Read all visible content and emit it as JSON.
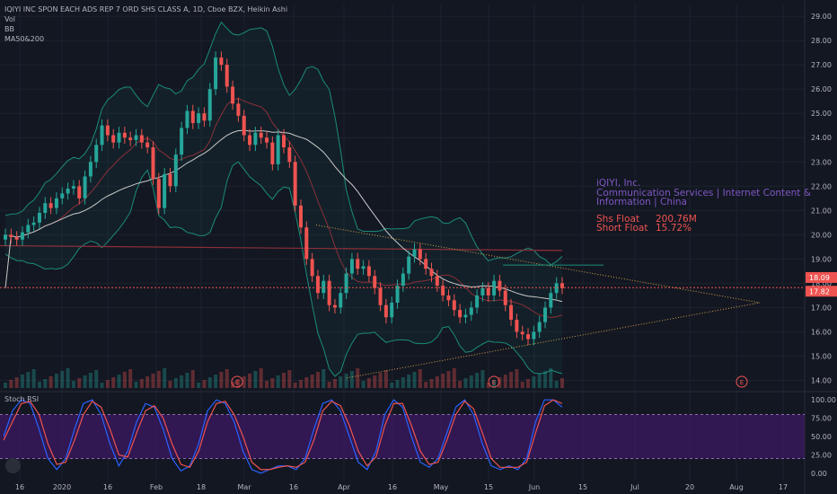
{
  "legend": {
    "title": "IQIYI INC SPON EACH ADS REP 7 ORD SHS CLASS A, 1D, Cboe BZX, Heikin Ashi",
    "indicators": [
      "Vol",
      "BB",
      "MA50&200"
    ]
  },
  "info": {
    "company": "iQIYI, Inc.",
    "sector_line1": "Communication Services | Internet Content &",
    "sector_line2": "Information | China",
    "shs_float_label": "Shs Float",
    "shs_float_value": "200.76M",
    "short_float_label": "Short Float",
    "short_float_value": "15.72%"
  },
  "rsi_label": "Stoch RSI",
  "colors": {
    "background": "#131722",
    "up": "#26a69a",
    "down": "#ef5350",
    "axis_text": "#b2b5be",
    "grid": "#1e222d",
    "ma50": "#c9c9c9",
    "ma200": "#8c2f39",
    "bb_line": "#1b8c7a",
    "rsi_band": "#4a1a7a",
    "rsi_k": "#2962ff",
    "rsi_d": "#ef5350"
  },
  "chart_data": [
    {
      "type": "candlestick",
      "title": "IQIYI INC SPON EACH ADS REP 7 ORD SHS CLASS A, 1D, Cboe BZX, Heikin Ashi",
      "x_tick_labels": [
        "16",
        "2020",
        "16",
        "Feb",
        "18",
        "Mar",
        "16",
        "Apr",
        "16",
        "May",
        "15",
        "Jun",
        "15",
        "Jul",
        "20",
        "Aug",
        "17"
      ],
      "y_tick_labels": [
        "14.00",
        "15.00",
        "16.00",
        "17.00",
        "18.00",
        "19.00",
        "20.00",
        "21.00",
        "22.00",
        "23.00",
        "24.00",
        "25.00",
        "26.00",
        "27.00",
        "28.00",
        "29.00"
      ],
      "ylim": [
        13.5,
        29.3
      ],
      "price_labels": [
        "18.09",
        "17.82"
      ],
      "last_price": 17.82,
      "prev_price": 18.09,
      "earnings_markers": [
        "E",
        "E",
        "E"
      ],
      "close_series": [
        20.0,
        19.9,
        19.8,
        20.1,
        20.4,
        20.5,
        20.9,
        21.3,
        21.1,
        21.5,
        21.7,
        21.9,
        22.0,
        21.5,
        22.4,
        23.0,
        23.7,
        24.5,
        24.1,
        23.8,
        24.2,
        24.0,
        23.9,
        24.1,
        23.8,
        23.6,
        22.3,
        21.1,
        22.5,
        22.0,
        23.3,
        24.4,
        25.1,
        24.6,
        25.0,
        24.7,
        26.0,
        27.3,
        27.0,
        26.1,
        25.4,
        24.9,
        24.1,
        23.7,
        24.2,
        24.0,
        23.8,
        22.9,
        24.1,
        23.6,
        23.0,
        21.2,
        20.3,
        19.0,
        18.3,
        17.6,
        18.1,
        17.1,
        17.0,
        17.6,
        18.4,
        19.0,
        18.6,
        18.7,
        18.3,
        17.8,
        17.1,
        16.6,
        17.2,
        17.9,
        18.4,
        19.1,
        19.4,
        19.0,
        18.6,
        18.3,
        17.9,
        17.5,
        17.3,
        16.9,
        16.6,
        16.7,
        17.0,
        17.5,
        17.8,
        17.5,
        18.1,
        17.7,
        17.1,
        16.5,
        16.0,
        15.9,
        15.7,
        16.0,
        16.4,
        17.0,
        17.6,
        18.0,
        17.8
      ],
      "ma50_start": 17.8,
      "ma50_end": 17.9,
      "ma200_level": 19.4
    },
    {
      "type": "line",
      "title": "Stoch RSI",
      "y_tick_labels": [
        "0.00",
        "25.00",
        "50.00",
        "75.00",
        "100.00"
      ],
      "ylim": [
        -10,
        110
      ],
      "band": [
        20,
        80
      ],
      "series": [
        {
          "values": [
            50,
            85,
            100,
            95,
            60,
            20,
            5,
            20,
            60,
            95,
            100,
            80,
            40,
            10,
            30,
            70,
            95,
            90,
            60,
            20,
            3,
            10,
            40,
            85,
            100,
            95,
            70,
            30,
            5,
            0,
            5,
            10,
            10,
            5,
            20,
            60,
            95,
            100,
            85,
            50,
            15,
            5,
            30,
            80,
            100,
            90,
            50,
            15,
            8,
            20,
            55,
            90,
            100,
            80,
            40,
            10,
            5,
            10,
            5,
            20,
            70,
            100,
            100,
            90
          ]
        },
        {
          "values": [
            45,
            70,
            95,
            98,
            80,
            40,
            12,
            15,
            45,
            80,
            98,
            90,
            60,
            25,
            22,
            55,
            85,
            92,
            75,
            40,
            12,
            8,
            30,
            70,
            95,
            98,
            80,
            50,
            15,
            5,
            5,
            8,
            10,
            8,
            15,
            45,
            85,
            98,
            92,
            65,
            30,
            10,
            22,
            65,
            95,
            95,
            65,
            30,
            12,
            15,
            45,
            80,
            98,
            88,
            55,
            20,
            8,
            8,
            8,
            15,
            55,
            92,
            100,
            95
          ]
        }
      ]
    }
  ]
}
